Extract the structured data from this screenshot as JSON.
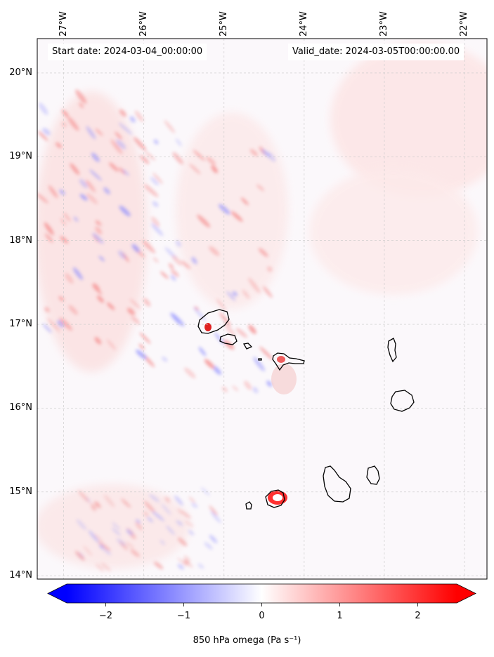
{
  "map": {
    "start_date_text": "Start date: 2024-03-04_00:00:00",
    "valid_date_text": "Valid_date: 2024-03-05T00:00:00.00",
    "lon_ticks": [
      "27°W",
      "26°W",
      "25°W",
      "24°W",
      "23°W",
      "22°W"
    ],
    "lat_ticks": [
      "20°N",
      "19°N",
      "18°N",
      "17°N",
      "16°N",
      "15°N",
      "14°N"
    ],
    "lon_values": [
      -27,
      -26,
      -25,
      -24,
      -23,
      -22
    ],
    "lat_values": [
      20,
      19,
      18,
      17,
      16,
      15,
      14
    ],
    "extent": {
      "lon": [
        -27.33,
        -21.72
      ],
      "lat": [
        13.96,
        20.41
      ]
    },
    "field_variable": "850 hPa omega",
    "coastline_color": "#000000",
    "gridline_color": "#bbbbbb"
  },
  "colorbar": {
    "label_text": "850 hPa omega (Pa s⁻¹)",
    "ticks": [
      "−2",
      "−1",
      "0",
      "1",
      "2"
    ],
    "tick_values": [
      -2,
      -1,
      0,
      1,
      2
    ],
    "range": [
      -2.5,
      2.5
    ],
    "colormap": "bwr",
    "extend": "both",
    "colors": {
      "low": "#0000ff",
      "mid": "#ffffff",
      "high": "#ff0000"
    }
  }
}
